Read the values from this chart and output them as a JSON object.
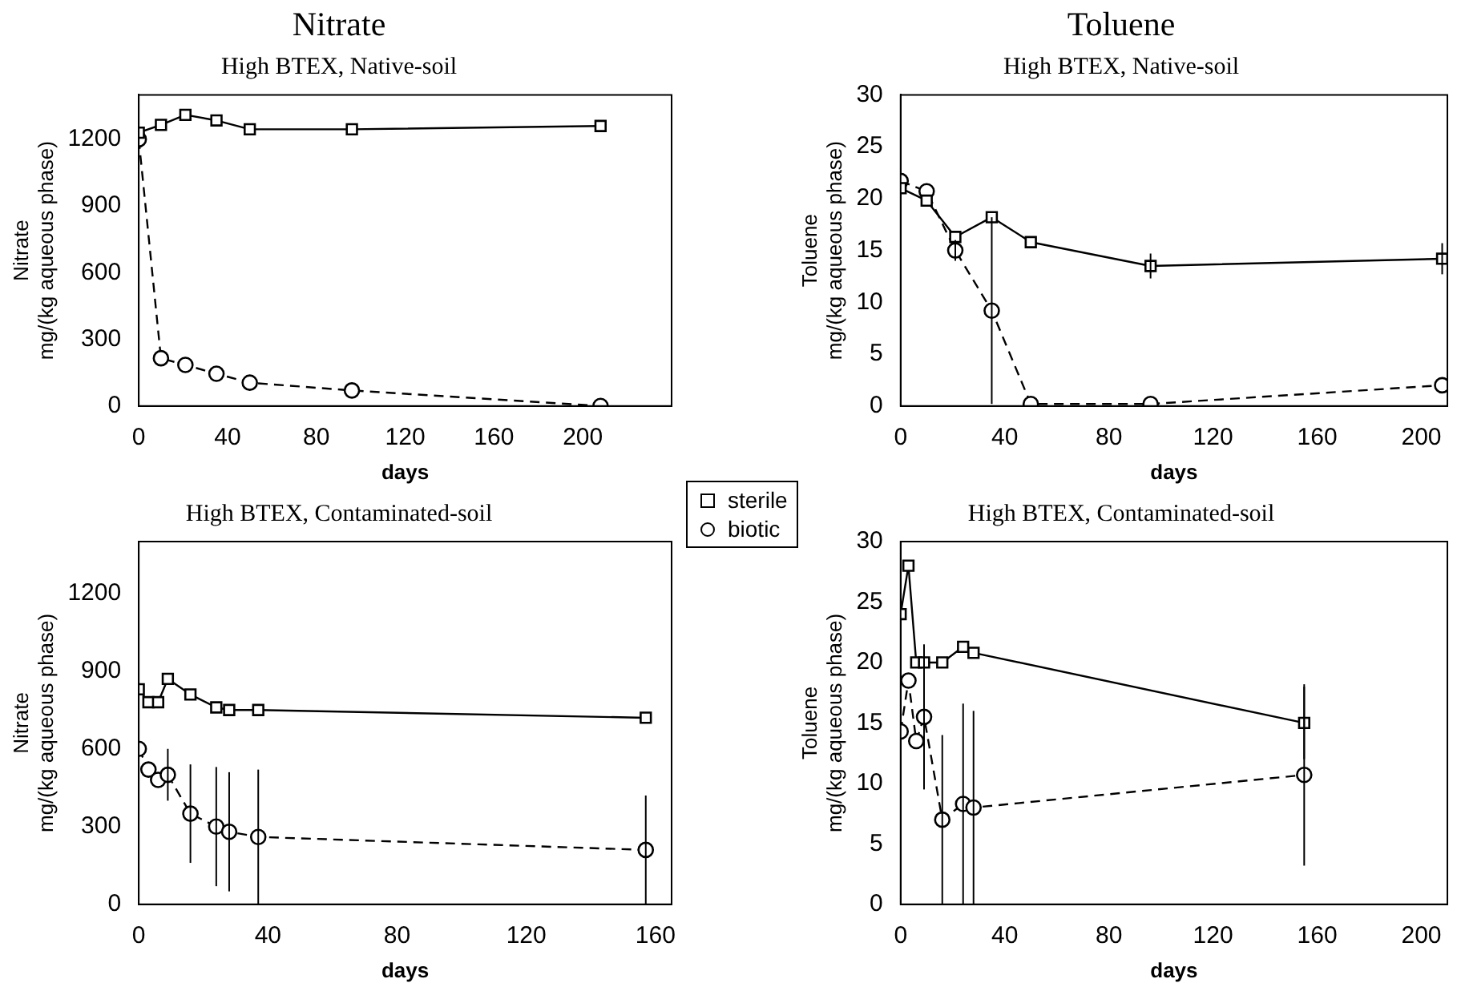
{
  "chart_data": [
    {
      "type": "line",
      "title": "Nitrate",
      "subtitle": "High BTEX, Native-soil",
      "xlabel": "days",
      "ylabel": "Nitrate\nmg/(kg aqueous phase)",
      "xlim": [
        0,
        240
      ],
      "xticks": [
        0,
        40,
        80,
        120,
        160,
        200
      ],
      "ylim": [
        0,
        1400
      ],
      "yticks": [
        0,
        300,
        600,
        900,
        1200
      ],
      "grid": false,
      "legend": "right",
      "series": [
        {
          "name": "sterile",
          "color": "#000000",
          "marker": "square",
          "line_style": "solid",
          "x": [
            0,
            10,
            21,
            35,
            50,
            96,
            208
          ],
          "values": [
            1230,
            1265,
            1310,
            1285,
            1245,
            1245,
            1260
          ]
        },
        {
          "name": "biotic",
          "color": "#000000",
          "marker": "circle",
          "line_style": "dashed",
          "x": [
            0,
            10,
            21,
            35,
            50,
            96,
            208
          ],
          "values": [
            1200,
            215,
            185,
            145,
            105,
            70,
            0
          ]
        }
      ]
    },
    {
      "type": "line",
      "title": "Toluene",
      "subtitle": "High BTEX, Native-soil",
      "xlabel": "days",
      "ylabel": "Toluene\nmg/(kg aqueous phase)",
      "xlim": [
        0,
        210
      ],
      "xticks": [
        0,
        40,
        80,
        120,
        160,
        200
      ],
      "ylim": [
        0,
        30
      ],
      "yticks": [
        0,
        5,
        10,
        15,
        20,
        25,
        30
      ],
      "grid": false,
      "series": [
        {
          "color": "#000000",
          "marker": "square",
          "line_style": "solid",
          "x": [
            0,
            10,
            21,
            35,
            50,
            96,
            208
          ],
          "values": [
            21,
            19.8,
            16.3,
            18.2,
            15.8,
            13.5,
            14.2
          ],
          "errors": [
            null,
            null,
            null,
            null,
            null,
            1.2,
            1.5
          ]
        },
        {
          "color": "#000000",
          "marker": "circle",
          "line_style": "dashed",
          "x": [
            0,
            10,
            21,
            35,
            50,
            96,
            208
          ],
          "values": [
            21.7,
            20.7,
            15,
            9.2,
            0.2,
            0.2,
            2
          ],
          "errors": [
            null,
            null,
            1,
            9,
            null,
            null,
            null
          ]
        }
      ]
    },
    {
      "type": "line",
      "subtitle": "High BTEX, Contaminated-soil",
      "xlabel": "days",
      "ylabel": "Nitrate\nmg/(kg aqueous phase)",
      "xlim": [
        0,
        165
      ],
      "xticks": [
        0,
        40,
        80,
        120,
        160
      ],
      "ylim": [
        0,
        1400
      ],
      "yticks": [
        0,
        300,
        600,
        900,
        1200
      ],
      "grid": false,
      "series": [
        {
          "color": "#000000",
          "marker": "square",
          "line_style": "solid",
          "x": [
            0,
            3,
            6,
            9,
            16,
            24,
            28,
            37,
            157
          ],
          "values": [
            830,
            780,
            780,
            870,
            810,
            760,
            750,
            750,
            720
          ]
        },
        {
          "color": "#000000",
          "marker": "circle",
          "line_style": "dashed",
          "x": [
            0,
            3,
            6,
            9,
            16,
            24,
            28,
            37,
            157
          ],
          "values": [
            600,
            520,
            480,
            500,
            350,
            300,
            280,
            260,
            210
          ],
          "errors": [
            null,
            null,
            null,
            100,
            190,
            230,
            230,
            260,
            210
          ]
        }
      ]
    },
    {
      "type": "line",
      "subtitle": "High BTEX, Contaminated-soil",
      "xlabel": "days",
      "ylabel": "Toluene\nmg/(kg aqueous phase)",
      "xlim": [
        0,
        210
      ],
      "xticks": [
        0,
        40,
        80,
        120,
        160,
        200
      ],
      "ylim": [
        0,
        30
      ],
      "yticks": [
        0,
        5,
        10,
        15,
        20,
        25,
        30
      ],
      "grid": false,
      "series": [
        {
          "color": "#000000",
          "marker": "square",
          "line_style": "solid",
          "x": [
            0,
            3,
            6,
            9,
            16,
            24,
            28,
            155
          ],
          "values": [
            24,
            28,
            20,
            20,
            20,
            21.3,
            20.8,
            15
          ],
          "errors": [
            null,
            null,
            null,
            null,
            null,
            null,
            null,
            3
          ]
        },
        {
          "color": "#000000",
          "marker": "circle",
          "line_style": "dashed",
          "x": [
            0,
            3,
            6,
            9,
            16,
            24,
            28,
            155
          ],
          "values": [
            14.3,
            18.5,
            13.5,
            15.5,
            7,
            8.3,
            8,
            10.7
          ],
          "errors": [
            null,
            null,
            null,
            6,
            7,
            8.3,
            8,
            7.5
          ]
        }
      ]
    }
  ]
}
